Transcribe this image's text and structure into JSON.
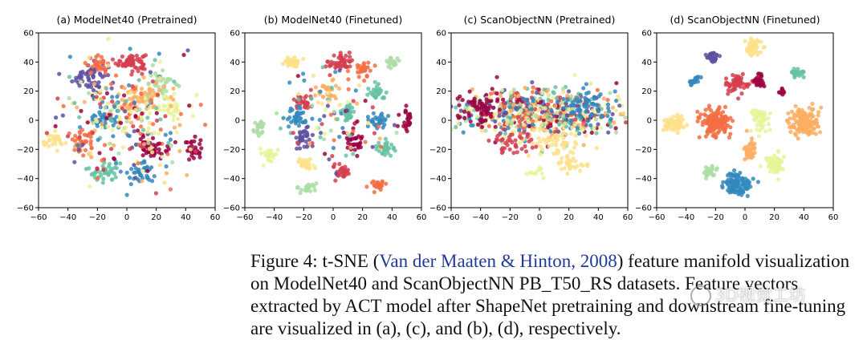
{
  "palette": [
    "#9e0142",
    "#d53e4f",
    "#f46d43",
    "#fdae61",
    "#fee08b",
    "#e6f598",
    "#abdda4",
    "#66c2a5",
    "#3288bd",
    "#5e4fa2"
  ],
  "chart_data": [
    {
      "type": "scatter",
      "title": "(a) ModelNet40 (Pretrained)",
      "xlim": [
        -60,
        60
      ],
      "ylim": [
        -60,
        60
      ],
      "xticks": [
        -60,
        -40,
        -20,
        0,
        20,
        40,
        60
      ],
      "yticks": [
        -60,
        -40,
        -20,
        0,
        20,
        40,
        60
      ],
      "clusters": [
        {
          "x": 3,
          "y": 40,
          "sx": 5,
          "sy": 3,
          "n": 70,
          "c": 1
        },
        {
          "x": -25,
          "y": 30,
          "sx": 6,
          "sy": 5,
          "n": 60,
          "c": 9
        },
        {
          "x": -20,
          "y": 38,
          "sx": 4,
          "sy": 3,
          "n": 30,
          "c": 2
        },
        {
          "x": 25,
          "y": 25,
          "sx": 5,
          "sy": 4,
          "n": 35,
          "c": 6
        },
        {
          "x": -30,
          "y": -15,
          "sx": 5,
          "sy": 4,
          "n": 40,
          "c": 2
        },
        {
          "x": -15,
          "y": 0,
          "sx": 5,
          "sy": 3,
          "n": 40,
          "c": 8
        },
        {
          "x": 17,
          "y": -18,
          "sx": 5,
          "sy": 4,
          "n": 45,
          "c": 0
        },
        {
          "x": 30,
          "y": 10,
          "sx": 5,
          "sy": 4,
          "n": 30,
          "c": 5
        },
        {
          "x": 45,
          "y": -20,
          "sx": 3,
          "sy": 4,
          "n": 30,
          "c": 0
        },
        {
          "x": -50,
          "y": -15,
          "sx": 4,
          "sy": 3,
          "n": 30,
          "c": 4
        },
        {
          "x": 10,
          "y": 15,
          "sx": 8,
          "sy": 6,
          "n": 60,
          "c": 3
        },
        {
          "x": -15,
          "y": -35,
          "sx": 6,
          "sy": 4,
          "n": 40,
          "c": 7
        },
        {
          "x": 10,
          "y": -35,
          "sx": 6,
          "sy": 4,
          "n": 35,
          "c": 8
        },
        {
          "x": 0,
          "y": 0,
          "sx": 22,
          "sy": 20,
          "n": 260,
          "c": -1
        }
      ]
    },
    {
      "type": "scatter",
      "title": "(b) ModelNet40 (Finetuned)",
      "xlim": [
        -60,
        60
      ],
      "ylim": [
        -60,
        60
      ],
      "xticks": [
        -60,
        -40,
        -20,
        0,
        20,
        40,
        60
      ],
      "yticks": [
        -60,
        -40,
        -20,
        0,
        20,
        40,
        60
      ],
      "clusters": [
        {
          "x": -28,
          "y": 40,
          "sx": 3,
          "sy": 2,
          "n": 30,
          "c": 4
        },
        {
          "x": 5,
          "y": 40,
          "sx": 4,
          "sy": 3,
          "n": 50,
          "c": 1
        },
        {
          "x": 20,
          "y": 35,
          "sx": 3,
          "sy": 3,
          "n": 30,
          "c": 2
        },
        {
          "x": 40,
          "y": 40,
          "sx": 3,
          "sy": 2,
          "n": 20,
          "c": 6
        },
        {
          "x": -20,
          "y": 12,
          "sx": 3,
          "sy": 3,
          "n": 30,
          "c": 1
        },
        {
          "x": -5,
          "y": 20,
          "sx": 4,
          "sy": 3,
          "n": 30,
          "c": 3
        },
        {
          "x": 30,
          "y": 20,
          "sx": 3,
          "sy": 3,
          "n": 30,
          "c": 7
        },
        {
          "x": -25,
          "y": 2,
          "sx": 4,
          "sy": 4,
          "n": 40,
          "c": 8
        },
        {
          "x": 10,
          "y": 5,
          "sx": 3,
          "sy": 3,
          "n": 30,
          "c": 7
        },
        {
          "x": 30,
          "y": 0,
          "sx": 3,
          "sy": 3,
          "n": 30,
          "c": 8
        },
        {
          "x": 50,
          "y": 0,
          "sx": 2,
          "sy": 4,
          "n": 25,
          "c": 0
        },
        {
          "x": -50,
          "y": -5,
          "sx": 2,
          "sy": 3,
          "n": 20,
          "c": 6
        },
        {
          "x": -20,
          "y": -12,
          "sx": 3,
          "sy": 3,
          "n": 30,
          "c": 9
        },
        {
          "x": 15,
          "y": -15,
          "sx": 3,
          "sy": 3,
          "n": 30,
          "c": 0
        },
        {
          "x": 35,
          "y": -18,
          "sx": 3,
          "sy": 3,
          "n": 30,
          "c": 7
        },
        {
          "x": -45,
          "y": -25,
          "sx": 3,
          "sy": 3,
          "n": 20,
          "c": 5
        },
        {
          "x": -20,
          "y": -30,
          "sx": 3,
          "sy": 2,
          "n": 25,
          "c": 4
        },
        {
          "x": 5,
          "y": -35,
          "sx": 3,
          "sy": 2,
          "n": 30,
          "c": 1
        },
        {
          "x": 30,
          "y": -45,
          "sx": 3,
          "sy": 2,
          "n": 25,
          "c": 2
        },
        {
          "x": -18,
          "y": -47,
          "sx": 3,
          "sy": 2,
          "n": 20,
          "c": 6
        },
        {
          "x": 0,
          "y": 0,
          "sx": 18,
          "sy": 18,
          "n": 90,
          "c": -1
        }
      ]
    },
    {
      "type": "scatter",
      "title": "(c) ScanObjectNN (Pretrained)",
      "xlim": [
        -60,
        60
      ],
      "ylim": [
        -60,
        60
      ],
      "xticks": [
        -60,
        -40,
        -20,
        0,
        20,
        40,
        60
      ],
      "yticks": [
        -60,
        -40,
        -20,
        0,
        20,
        40,
        60
      ],
      "clusters": [
        {
          "x": 0,
          "y": 5,
          "sx": 28,
          "sy": 8,
          "n": 700,
          "c": -1
        },
        {
          "x": -40,
          "y": 10,
          "sx": 8,
          "sy": 6,
          "n": 60,
          "c": 0
        },
        {
          "x": 30,
          "y": 10,
          "sx": 8,
          "sy": 6,
          "n": 60,
          "c": 8
        },
        {
          "x": 10,
          "y": -15,
          "sx": 10,
          "sy": 5,
          "n": 60,
          "c": 4
        },
        {
          "x": -20,
          "y": -15,
          "sx": 8,
          "sy": 4,
          "n": 40,
          "c": 1
        },
        {
          "x": 20,
          "y": -30,
          "sx": 6,
          "sy": 3,
          "n": 30,
          "c": 4
        },
        {
          "x": 0,
          "y": -35,
          "sx": 4,
          "sy": 2,
          "n": 10,
          "c": 5
        }
      ]
    },
    {
      "type": "scatter",
      "title": "(d) ScanObjectNN (Finetuned)",
      "xlim": [
        -60,
        60
      ],
      "ylim": [
        -60,
        60
      ],
      "xticks": [
        -60,
        -40,
        -20,
        0,
        20,
        40,
        60
      ],
      "yticks": [
        -60,
        -40,
        -20,
        0,
        20,
        40,
        60
      ],
      "clusters": [
        {
          "x": 5,
          "y": 50,
          "sx": 3,
          "sy": 3,
          "n": 60,
          "c": 4
        },
        {
          "x": -22,
          "y": 43,
          "sx": 2,
          "sy": 2,
          "n": 25,
          "c": 9
        },
        {
          "x": -35,
          "y": 28,
          "sx": 2,
          "sy": 2,
          "n": 20,
          "c": 8
        },
        {
          "x": -5,
          "y": 25,
          "sx": 4,
          "sy": 3,
          "n": 60,
          "c": 1
        },
        {
          "x": 10,
          "y": 27,
          "sx": 2,
          "sy": 2,
          "n": 25,
          "c": 0
        },
        {
          "x": 35,
          "y": 32,
          "sx": 2,
          "sy": 2,
          "n": 25,
          "c": 7
        },
        {
          "x": 25,
          "y": 20,
          "sx": 1,
          "sy": 1,
          "n": 8,
          "c": 0
        },
        {
          "x": -48,
          "y": -2,
          "sx": 4,
          "sy": 3,
          "n": 60,
          "c": 4
        },
        {
          "x": -20,
          "y": -2,
          "sx": 5,
          "sy": 5,
          "n": 140,
          "c": 2
        },
        {
          "x": 10,
          "y": 0,
          "sx": 3,
          "sy": 4,
          "n": 50,
          "c": 5
        },
        {
          "x": 40,
          "y": -2,
          "sx": 5,
          "sy": 5,
          "n": 140,
          "c": 3
        },
        {
          "x": 3,
          "y": -20,
          "sx": 2,
          "sy": 4,
          "n": 35,
          "c": 3
        },
        {
          "x": 20,
          "y": -30,
          "sx": 3,
          "sy": 4,
          "n": 60,
          "c": 5
        },
        {
          "x": -25,
          "y": -35,
          "sx": 3,
          "sy": 2,
          "n": 25,
          "c": 6
        },
        {
          "x": -5,
          "y": -45,
          "sx": 5,
          "sy": 4,
          "n": 100,
          "c": 8
        }
      ]
    }
  ],
  "caption": {
    "label": "Figure 4:",
    "text_before": "t-SNE (",
    "citation": "Van der Maaten & Hinton, 2008",
    "text_after": ") feature manifold visualization on ModelNet40 and ScanObjectNN PB_T50_RS datasets. Feature vectors extracted by ACT model after ShapeNet pretraining and downstream fine-tuning are visualized in (a), (c), and (b), (d), respectively."
  },
  "watermark": "3D视觉工坊"
}
